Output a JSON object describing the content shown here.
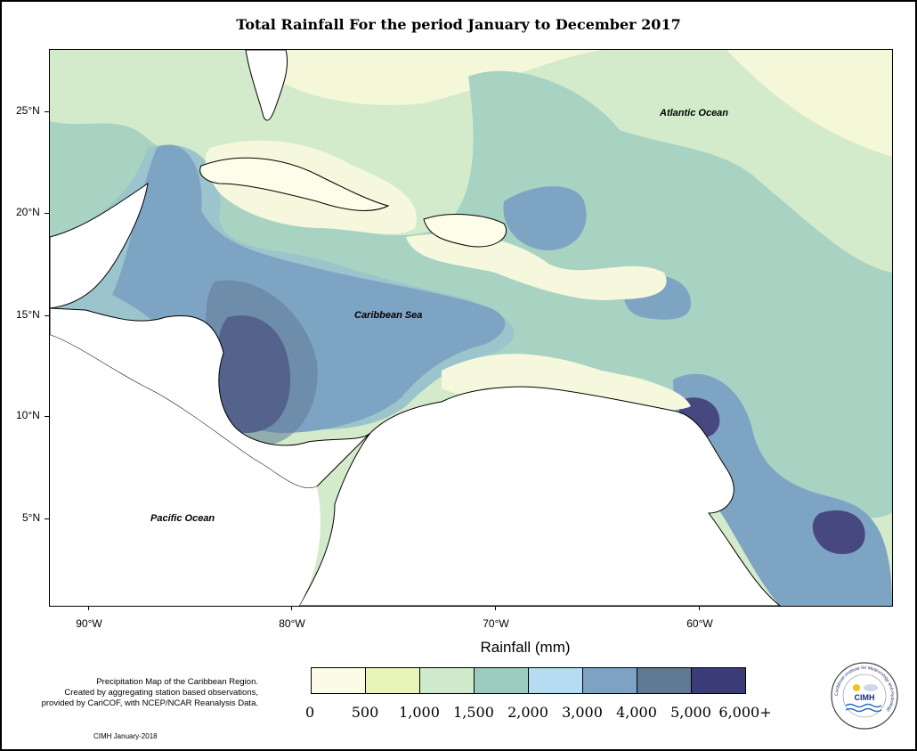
{
  "title": "Total Rainfall For the period January to December 2017",
  "map": {
    "lat_labels": [
      "25°N",
      "20°N",
      "15°N",
      "10°N",
      "5°N"
    ],
    "lon_labels": [
      "90°W",
      "80°W",
      "70°W",
      "60°W"
    ],
    "ocean_labels": {
      "atlantic": "Atlantic Ocean",
      "caribbean": "Caribbean Sea",
      "pacific": "Pacific Ocean"
    }
  },
  "legend": {
    "title": "Rainfall (mm)",
    "colors": [
      "#fbfbe6",
      "#e8f4b8",
      "#d0ebcc",
      "#9ecbbf",
      "#b6dcf2",
      "#7ea2c1",
      "#5f7a92",
      "#3b3d78"
    ],
    "ticks": [
      "0",
      "500",
      "1,000",
      "1,500",
      "2,000",
      "3,000",
      "4,000",
      "5,000",
      "6,000+"
    ]
  },
  "credit": {
    "line1": "Precipitation Map of the Caribbean Region.",
    "line2": "Created by aggregating station based observations,",
    "line3": "provided by CariCOF, with NCEP/NCAR Reanalysis Data."
  },
  "footer": "CIMH January-2018",
  "logo": {
    "abbr": "CIMH",
    "ring_text": "Caribbean Institute for Meteorology and Hydrology"
  }
}
